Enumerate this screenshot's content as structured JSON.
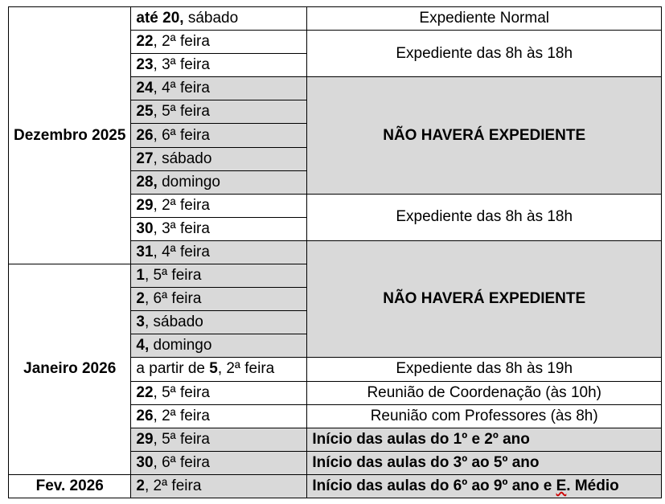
{
  "months": {
    "dez": "Dezembro 2025",
    "jan": "Janeiro 2026",
    "fev": "Fev. 2026"
  },
  "days": [
    {
      "pre": "",
      "b": "até 20,",
      "t": " sábado"
    },
    {
      "pre": "",
      "b": "22",
      "t": ", 2ª feira"
    },
    {
      "pre": "",
      "b": "23",
      "t": ", 3ª feira"
    },
    {
      "pre": "",
      "b": "24",
      "t": ", 4ª feira"
    },
    {
      "pre": "",
      "b": "25",
      "t": ", 5ª feira"
    },
    {
      "pre": "",
      "b": "26",
      "t": ", 6ª feira"
    },
    {
      "pre": "",
      "b": "27",
      "t": ", sábado"
    },
    {
      "pre": "",
      "b": "28,",
      "t": " domingo"
    },
    {
      "pre": "",
      "b": "29",
      "t": ", 2ª feira"
    },
    {
      "pre": "",
      "b": "30",
      "t": ", 3ª feira"
    },
    {
      "pre": "",
      "b": "31",
      "t": ", 4ª feira"
    },
    {
      "pre": "",
      "b": "1",
      "t": ", 5ª feira"
    },
    {
      "pre": "",
      "b": "2",
      "t": ", 6ª feira"
    },
    {
      "pre": "",
      "b": "3",
      "t": ", sábado"
    },
    {
      "pre": "",
      "b": "4,",
      "t": " domingo"
    },
    {
      "pre": "a partir de ",
      "b": "5",
      "t": ", 2ª feira"
    },
    {
      "pre": "",
      "b": "22",
      "t": ", 5ª feira"
    },
    {
      "pre": "",
      "b": "26",
      "t": ", 2ª feira"
    },
    {
      "pre": "",
      "b": "29",
      "t": ", 5ª feira"
    },
    {
      "pre": "",
      "b": "30",
      "t": ", 6ª feira"
    },
    {
      "pre": "",
      "b": "2",
      "t": ", 2ª feira"
    }
  ],
  "notes": {
    "n1": "Expediente Normal",
    "n2": "Expediente das 8h às 18h",
    "n3": "NÃO HAVERÁ EXPEDIENTE",
    "n4": "Expediente das 8h às 18h",
    "n5": "NÃO HAVERÁ EXPEDIENTE",
    "n6": "Expediente das 8h às 19h",
    "n7": "Reunião de Coordenação (às 10h)",
    "n8": "Reunião com Professores (às 8h)",
    "n9": "Início das aulas do 1º e 2º ano",
    "n10": "Início das aulas do 3º ao 5º ano",
    "n11a": "Início das aulas do 6º ao 9º ano e ",
    "n11b": "E",
    "n11c": ". Médio"
  },
  "colors": {
    "shade": "#d9d9d9"
  }
}
